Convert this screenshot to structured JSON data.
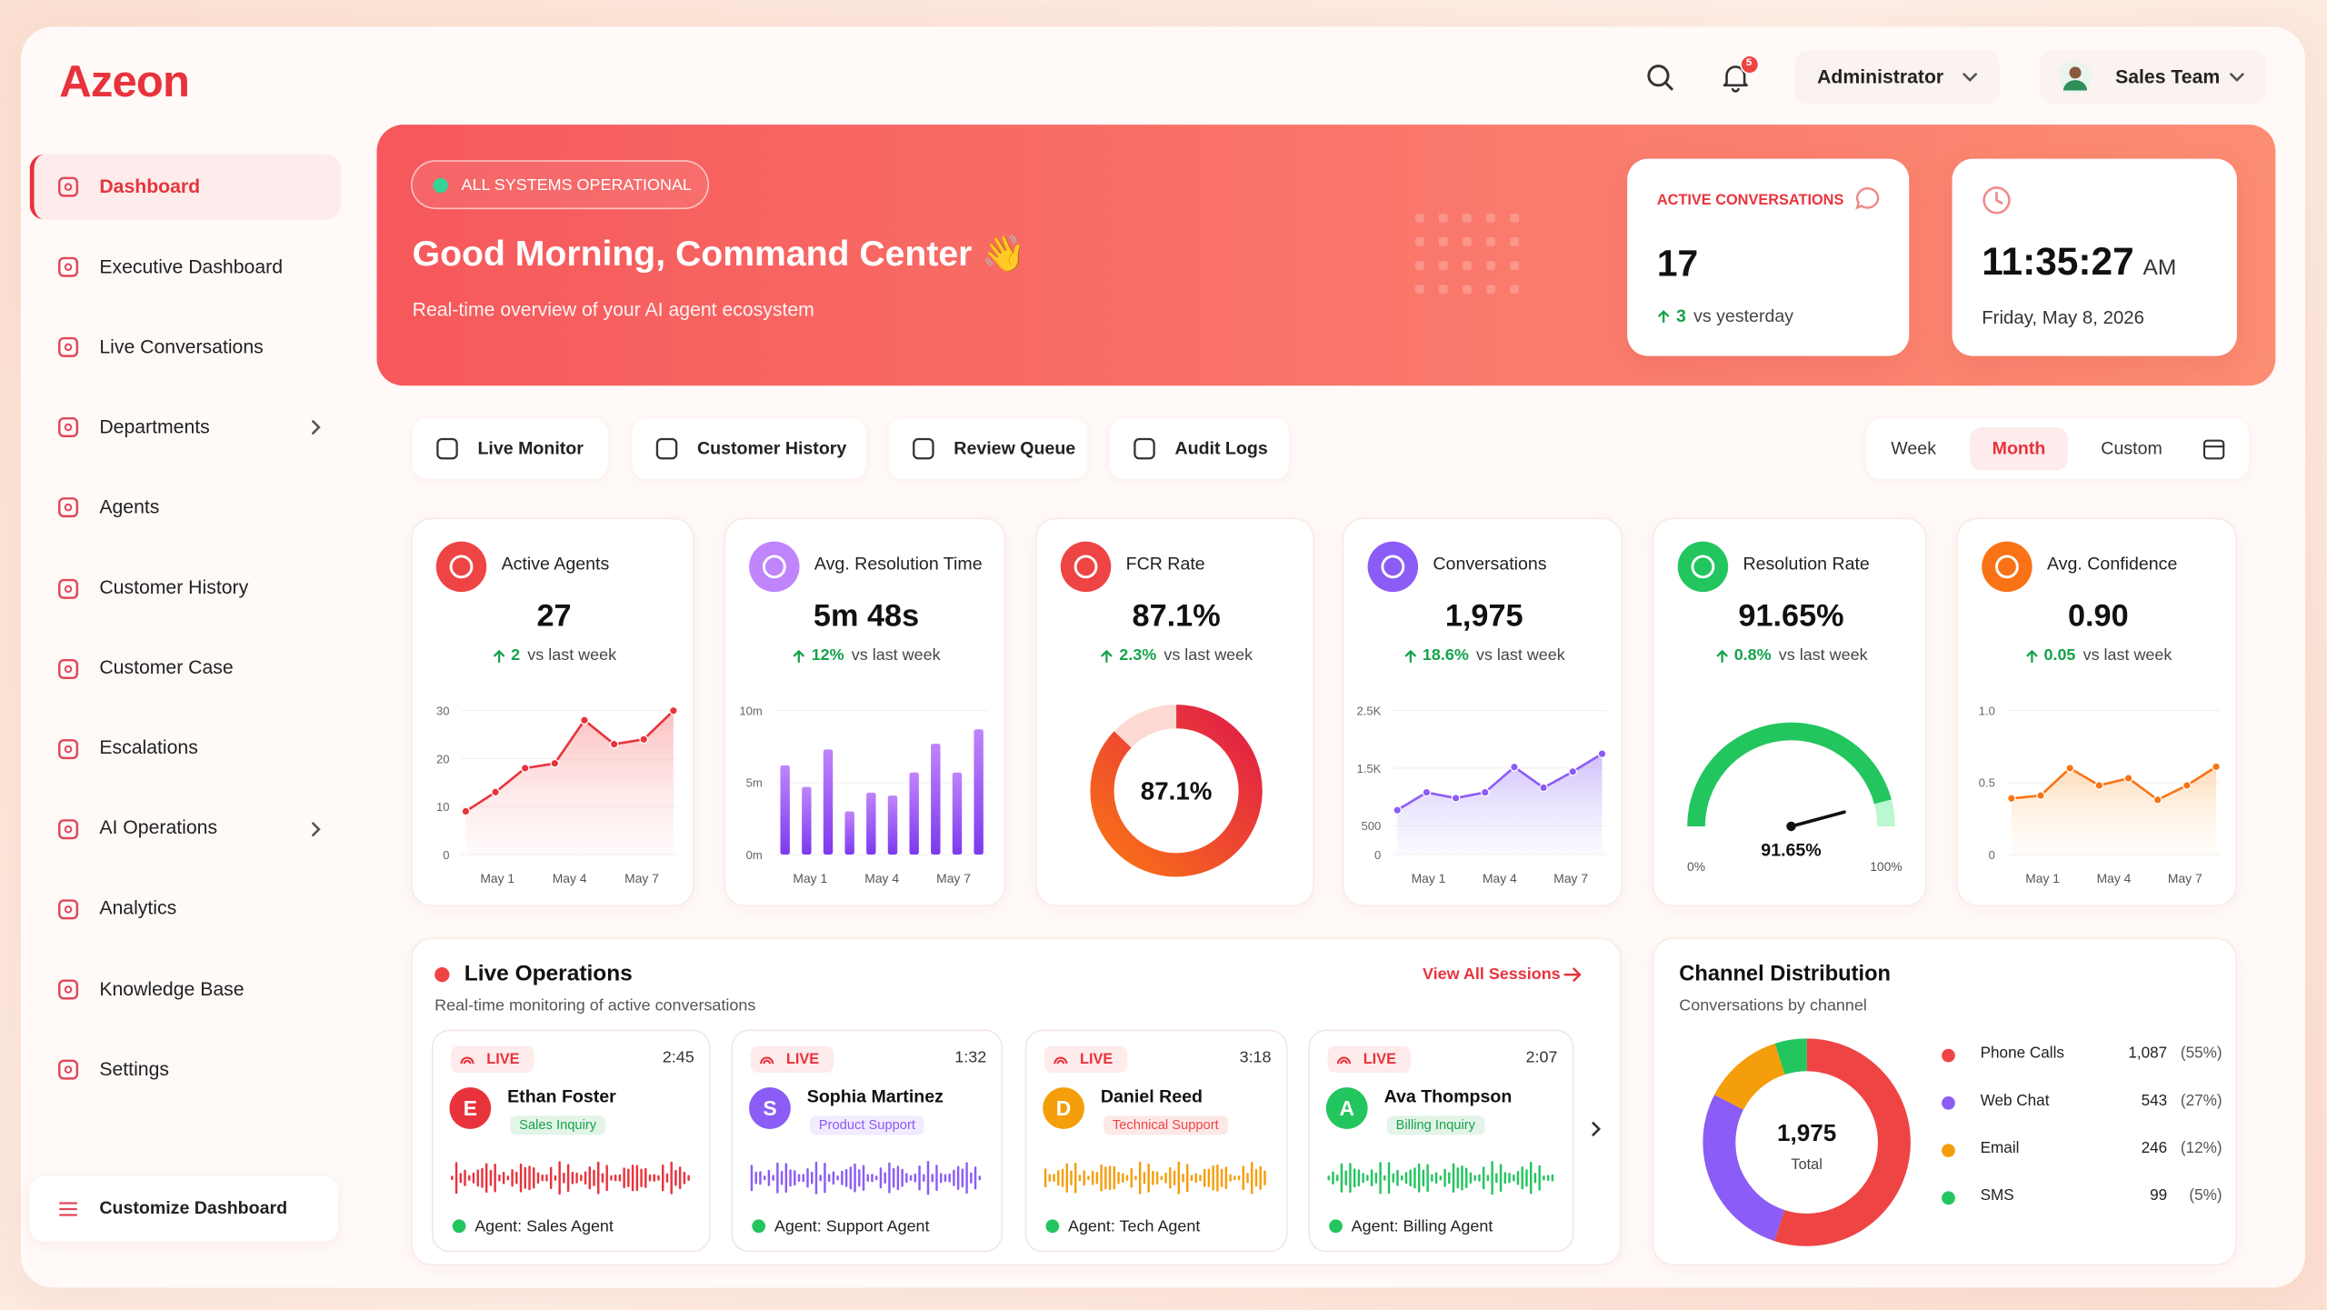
{
  "brand": "Azeon",
  "header": {
    "notifications": "5",
    "role": "Administrator",
    "team": "Sales Team"
  },
  "sidebar": {
    "items": [
      "Dashboard",
      "Executive Dashboard",
      "Live Conversations",
      "Departments",
      "Agents",
      "Customer History",
      "Customer Case",
      "Escalations",
      "AI Operations",
      "Analytics",
      "Knowledge Base",
      "Settings"
    ],
    "active": 0,
    "expandable": [
      3,
      8
    ],
    "customize": "Customize Dashboard"
  },
  "hero": {
    "status": "ALL SYSTEMS OPERATIONAL",
    "greeting": "Good Morning, Command Center 👋",
    "subtitle": "Real-time overview of your AI agent ecosystem",
    "active_conversations": {
      "label": "ACTIVE CONVERSATIONS",
      "value": "17",
      "delta": "3",
      "delta_text": "vs yesterday"
    },
    "clock": {
      "time": "11:35:27",
      "period": "AM",
      "date": "Friday, May 8, 2026"
    }
  },
  "tabs": [
    "Live Monitor",
    "Customer History",
    "Review Queue",
    "Audit Logs"
  ],
  "ranges": {
    "options": [
      "Week",
      "Month",
      "Custom"
    ],
    "selected": 1
  },
  "kpis": [
    {
      "title": "Active Agents",
      "value": "27",
      "delta": "2",
      "delta_text": "vs last week",
      "color": "#ef4444",
      "chart": {
        "type": "line",
        "values": [
          9,
          13,
          18,
          19,
          28,
          23,
          24,
          30
        ],
        "ylim": [
          0,
          30
        ],
        "yticks": [
          0,
          10,
          20,
          30
        ],
        "xlabels": [
          "May 1",
          "May 4",
          "May 7"
        ],
        "color": "#e8333c"
      }
    },
    {
      "title": "Avg. Resolution Time",
      "value": "5m 48s",
      "delta": "12%",
      "delta_text": "vs last week",
      "color": "#c084fc",
      "chart": {
        "type": "bar",
        "values": [
          6.2,
          4.7,
          7.3,
          3,
          4.3,
          4.1,
          5.7,
          7.7,
          5.7,
          8.7
        ],
        "ylim": [
          0,
          10
        ],
        "yticks": [
          {
            "value": 0,
            "label": "0m"
          },
          {
            "value": 5,
            "label": "5m"
          },
          {
            "value": 10,
            "label": "10m"
          }
        ],
        "xlabels": [
          "May 1",
          "May 4",
          "May 7"
        ],
        "color": "#9333ea"
      }
    },
    {
      "title": "FCR Rate",
      "value": "87.1%",
      "delta": "2.3%",
      "delta_text": "vs last week",
      "color": "#ef4444",
      "chart": {
        "type": "donut",
        "value": 87.1,
        "range": [
          0,
          100
        ],
        "label": "87.1%",
        "color": "#f05a28"
      }
    },
    {
      "title": "Conversations",
      "value": "1,975",
      "delta": "18.6%",
      "delta_text": "vs last week",
      "color": "#8b5cf6",
      "chart": {
        "type": "area",
        "values": [
          770,
          1080,
          980,
          1080,
          1520,
          1160,
          1440,
          1750
        ],
        "ylim": [
          0,
          2500
        ],
        "yticks": [
          0,
          500,
          {
            "value": 1500,
            "label": "1.5K"
          },
          {
            "value": 2500,
            "label": "2.5K"
          }
        ],
        "xlabels": [
          "May 1",
          "May 4",
          "May 7"
        ],
        "color": "#8b5cf6"
      }
    },
    {
      "title": "Resolution Rate",
      "value": "91.65%",
      "delta": "0.8%",
      "delta_text": "vs last week",
      "color": "#22c55e",
      "chart": {
        "type": "gauge",
        "value": 91.65,
        "label": "91.65%",
        "ticks": [
          {
            "value": 0,
            "label": "0%"
          },
          {
            "value": 100,
            "label": "100%"
          }
        ],
        "color": "#22c55e"
      }
    },
    {
      "title": "Avg. Confidence",
      "value": "0.90",
      "delta": "0.05",
      "delta_text": "vs last week",
      "color": "#f97316",
      "chart": {
        "type": "line",
        "values": [
          0.39,
          0.41,
          0.6,
          0.48,
          0.53,
          0.38,
          0.48,
          0.61
        ],
        "ylim": [
          0,
          1
        ],
        "yticks": [
          0,
          0.5,
          {
            "value": 1,
            "label": "1.0"
          }
        ],
        "xlabels": [
          "May 1",
          "May 4",
          "May 7"
        ],
        "color": "#f97316"
      }
    }
  ],
  "live_operations": {
    "title": "Live Operations",
    "subtitle": "Real-time monitoring of active conversations",
    "link": "View All Sessions",
    "sessions": [
      {
        "status": "LIVE",
        "duration": "2:45",
        "initial": "E",
        "name": "Ethan Foster",
        "tag": "Sales Inquiry",
        "tag_color": "#16a34a",
        "agent": "Agent: Sales Agent",
        "color": "#e8333c"
      },
      {
        "status": "LIVE",
        "duration": "1:32",
        "initial": "S",
        "name": "Sophia Martinez",
        "tag": "Product Support",
        "tag_color": "#8b5cf6",
        "agent": "Agent: Support Agent",
        "color": "#8b5cf6"
      },
      {
        "status": "LIVE",
        "duration": "3:18",
        "initial": "D",
        "name": "Daniel Reed",
        "tag": "Technical Support",
        "tag_color": "#ef4444",
        "agent": "Agent: Tech Agent",
        "color": "#f59e0b"
      },
      {
        "status": "LIVE",
        "duration": "2:07",
        "initial": "A",
        "name": "Ava Thompson",
        "tag": "Billing Inquiry",
        "tag_color": "#16a34a",
        "agent": "Agent: Billing Agent",
        "color": "#22c55e"
      }
    ]
  },
  "channel_distribution": {
    "title": "Channel Distribution",
    "subtitle": "Conversations by channel",
    "total": "1,975",
    "total_label": "Total",
    "series": [
      {
        "name": "Phone Calls",
        "value": 1087,
        "value_label": "1,087",
        "share": "(55%)",
        "color": "#ef4444"
      },
      {
        "name": "Web Chat",
        "value": 543,
        "value_label": "543",
        "share": "(27%)",
        "color": "#8b5cf6"
      },
      {
        "name": "Email",
        "value": 246,
        "value_label": "246",
        "share": "(12%)",
        "color": "#f59e0b"
      },
      {
        "name": "SMS",
        "value": 99,
        "value_label": "99",
        "share": "(5%)",
        "color": "#22c55e"
      }
    ]
  }
}
